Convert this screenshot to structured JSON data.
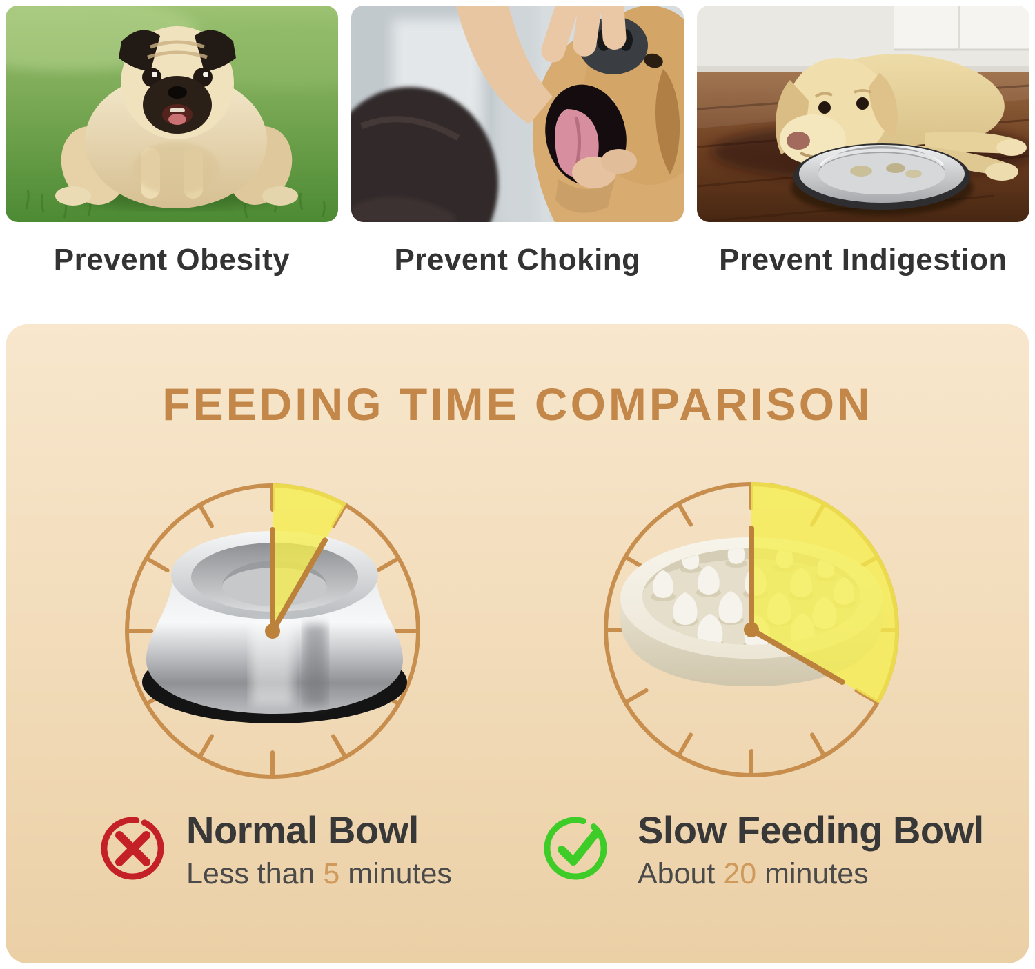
{
  "benefits": [
    {
      "label": "Prevent Obesity",
      "photo_alt": "overweight pug dog standing on green grass"
    },
    {
      "label": "Prevent Choking",
      "photo_alt": "owner opening a golden retriever's mouth"
    },
    {
      "label": "Prevent Indigestion",
      "photo_alt": "labrador lying on wooden floor beside a steel bowl"
    }
  ],
  "comparison": {
    "title": "FEEDING TIME COMPARISON",
    "clock_hour_marks": 12,
    "items": [
      {
        "name": "Normal Bowl",
        "bowl": "stainless steel bowl",
        "verdict": "negative",
        "time_prefix": "Less than ",
        "time_value": "5",
        "time_suffix": " minutes",
        "minutes": 5
      },
      {
        "name": "Slow Feeding Bowl",
        "bowl": "slow feeder maze bowl",
        "verdict": "positive",
        "time_prefix": "About ",
        "time_value": "20",
        "time_suffix": " minutes",
        "minutes": 20
      }
    ]
  },
  "colors": {
    "panel_top": "#f8e7cd",
    "panel_bottom": "#ebd0a6",
    "title": "#c4874a",
    "caption": "#333333",
    "clock_ring": "#c88e4e",
    "clock_hand": "#bc823c",
    "wedge": "#f5ee4e",
    "label_title": "#383838",
    "label_sub": "#4a4a4a",
    "time_number": "#cf9a5c",
    "cross_red": "#c42028",
    "check_green": "#3ecc28"
  }
}
